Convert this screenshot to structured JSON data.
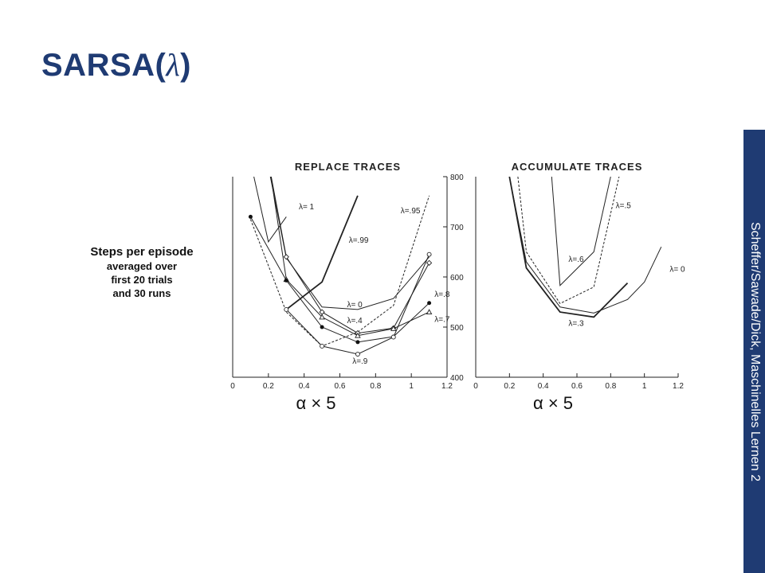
{
  "slide": {
    "title_prefix": "SARSA(",
    "title_lambda": "λ",
    "title_suffix": ")",
    "sidebar_text": "Scheffer/Sawade/Dick, Maschinelles Lernen 2",
    "accent_color": "#1f3b73"
  },
  "chart_data": [
    {
      "type": "line",
      "title": "Replace Traces",
      "ylabel": "Steps per episode",
      "ylabel_lines": [
        "averaged over",
        "first 20 trials",
        "and 30 runs"
      ],
      "xlabel": "α × 5",
      "xlim": [
        0,
        1.2
      ],
      "ylim": [
        400,
        800
      ],
      "xticks": [
        0,
        0.2,
        0.4,
        0.6,
        0.8,
        1,
        1.2
      ],
      "yticks": [
        400,
        500,
        600,
        700,
        800
      ],
      "series": [
        {
          "name": "λ= 1",
          "style": "solid",
          "marker": "none",
          "x": [
            0.1,
            0.2,
            0.3
          ],
          "y": [
            830,
            670,
            720
          ]
        },
        {
          "name": "λ=.99",
          "style": "solid-bold",
          "marker": "none",
          "x": [
            0.3,
            0.5,
            0.7
          ],
          "y": [
            535,
            590,
            762
          ]
        },
        {
          "name": "λ=.95",
          "style": "dashed",
          "marker": "none",
          "x": [
            0.1,
            0.3,
            0.5,
            0.7,
            0.9,
            1.1
          ],
          "y": [
            715,
            530,
            462,
            490,
            543,
            762
          ]
        },
        {
          "name": "λ= 0",
          "style": "solid",
          "marker": "none",
          "x": [
            0.2,
            0.3,
            0.5,
            0.7,
            0.9,
            1.1
          ],
          "y": [
            820,
            638,
            540,
            535,
            557,
            640
          ]
        },
        {
          "name": "λ=.4",
          "style": "solid",
          "marker": "open-diamond",
          "x": [
            0.2,
            0.3,
            0.5,
            0.7,
            0.9,
            1.1
          ],
          "y": [
            830,
            640,
            530,
            488,
            498,
            628
          ]
        },
        {
          "name": "λ=.7",
          "style": "solid",
          "marker": "open-triangle",
          "x": [
            0.2,
            0.3,
            0.5,
            0.7,
            0.9,
            1.1
          ],
          "y": [
            835,
            595,
            520,
            483,
            497,
            530
          ]
        },
        {
          "name": "λ=.8",
          "style": "solid",
          "marker": "filled-circle",
          "x": [
            0.1,
            0.3,
            0.5,
            0.7,
            0.9,
            1.1
          ],
          "y": [
            720,
            593,
            500,
            470,
            481,
            548
          ]
        },
        {
          "name": "λ=.9",
          "style": "solid",
          "marker": "open-circle",
          "x": [
            0.3,
            0.5,
            0.7,
            0.9,
            1.1
          ],
          "y": [
            535,
            462,
            446,
            480,
            645
          ]
        }
      ],
      "annotations": [
        {
          "text": "λ= 1",
          "x": 0.37,
          "y": 735
        },
        {
          "text": "λ=.99",
          "x": 0.65,
          "y": 668
        },
        {
          "text": "λ=.95",
          "x": 0.94,
          "y": 727
        },
        {
          "text": "λ= 0",
          "x": 0.64,
          "y": 540
        },
        {
          "text": "λ=.4",
          "x": 0.64,
          "y": 508
        },
        {
          "text": "λ=.9",
          "x": 0.67,
          "y": 427
        },
        {
          "text": "λ=.8",
          "x": 1.13,
          "y": 560
        },
        {
          "text": "λ=.7",
          "x": 1.13,
          "y": 510
        }
      ]
    },
    {
      "type": "line",
      "title": "Accumulate Traces",
      "xlabel": "α × 5",
      "xlim": [
        0,
        1.2
      ],
      "ylim": [
        400,
        800
      ],
      "xticks": [
        0,
        0.2,
        0.4,
        0.6,
        0.8,
        1,
        1.2
      ],
      "series": [
        {
          "name": "λ= 0",
          "style": "solid",
          "marker": "none",
          "x": [
            0.2,
            0.3,
            0.5,
            0.7,
            0.9,
            1.0,
            1.1
          ],
          "y": [
            800,
            630,
            540,
            528,
            555,
            590,
            660
          ]
        },
        {
          "name": "λ=.3",
          "style": "solid-bold",
          "marker": "none",
          "x": [
            0.2,
            0.3,
            0.5,
            0.7,
            0.9
          ],
          "y": [
            800,
            618,
            530,
            520,
            588
          ]
        },
        {
          "name": "λ=.5",
          "style": "dashed",
          "marker": "none",
          "x": [
            0.25,
            0.3,
            0.5,
            0.7,
            0.85
          ],
          "y": [
            800,
            650,
            547,
            580,
            800
          ]
        },
        {
          "name": "λ=.6",
          "style": "solid",
          "marker": "none",
          "x": [
            0.45,
            0.5,
            0.7,
            0.8
          ],
          "y": [
            800,
            583,
            650,
            800
          ]
        }
      ],
      "annotations": [
        {
          "text": "λ=.6",
          "x": 0.55,
          "y": 630
        },
        {
          "text": "λ=.5",
          "x": 0.83,
          "y": 737
        },
        {
          "text": "λ= 0",
          "x": 1.15,
          "y": 610
        },
        {
          "text": "λ=.3",
          "x": 0.55,
          "y": 502
        }
      ]
    }
  ]
}
